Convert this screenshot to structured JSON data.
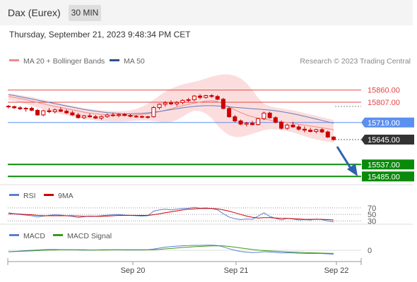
{
  "header": {
    "title": "Dax (Eurex)",
    "timeframe": "30 MIN"
  },
  "datetime": "Thursday, September 21, 2023 9:48:34 PM CET",
  "legend": {
    "ma20": "MA 20 + Bollinger Bands",
    "ma50": "MA 50",
    "credit": "Research © 2023 Trading Central"
  },
  "rsi_legend": {
    "rsi": "RSI",
    "ma": "9MA"
  },
  "macd_legend": {
    "macd": "MACD",
    "signal": "MACD Signal"
  },
  "colors": {
    "candle": "#cc0000",
    "ma20": "#f08a8a",
    "bb_fill": "#fbd7d7",
    "ma50": "#5f7fbf",
    "resistance": "#e64545",
    "pivot": "#5b8ff0",
    "support": "#0a8a0a",
    "current": "#333333",
    "arrow": "#2e62b0"
  },
  "chart_data": [
    {
      "type": "candlestick",
      "ylim": [
        15440,
        15960
      ],
      "x_ticks": [
        "Sep 20",
        "Sep 21",
        "Sep 22"
      ],
      "candles": [
        {
          "o": 15790,
          "h": 15795,
          "l": 15780,
          "c": 15788
        },
        {
          "o": 15788,
          "h": 15792,
          "l": 15778,
          "c": 15783
        },
        {
          "o": 15783,
          "h": 15790,
          "l": 15774,
          "c": 15778
        },
        {
          "o": 15778,
          "h": 15786,
          "l": 15766,
          "c": 15781
        },
        {
          "o": 15781,
          "h": 15788,
          "l": 15768,
          "c": 15772
        },
        {
          "o": 15772,
          "h": 15778,
          "l": 15748,
          "c": 15752
        },
        {
          "o": 15752,
          "h": 15774,
          "l": 15746,
          "c": 15770
        },
        {
          "o": 15770,
          "h": 15782,
          "l": 15760,
          "c": 15766
        },
        {
          "o": 15766,
          "h": 15780,
          "l": 15758,
          "c": 15774
        },
        {
          "o": 15774,
          "h": 15785,
          "l": 15764,
          "c": 15768
        },
        {
          "o": 15768,
          "h": 15776,
          "l": 15756,
          "c": 15761
        },
        {
          "o": 15761,
          "h": 15770,
          "l": 15748,
          "c": 15752
        },
        {
          "o": 15752,
          "h": 15760,
          "l": 15736,
          "c": 15740
        },
        {
          "o": 15740,
          "h": 15752,
          "l": 15734,
          "c": 15748
        },
        {
          "o": 15748,
          "h": 15758,
          "l": 15740,
          "c": 15744
        },
        {
          "o": 15744,
          "h": 15752,
          "l": 15735,
          "c": 15738
        },
        {
          "o": 15738,
          "h": 15750,
          "l": 15730,
          "c": 15745
        },
        {
          "o": 15745,
          "h": 15758,
          "l": 15740,
          "c": 15752
        },
        {
          "o": 15752,
          "h": 15762,
          "l": 15744,
          "c": 15750
        },
        {
          "o": 15750,
          "h": 15760,
          "l": 15742,
          "c": 15754
        },
        {
          "o": 15754,
          "h": 15760,
          "l": 15746,
          "c": 15750
        },
        {
          "o": 15750,
          "h": 15756,
          "l": 15742,
          "c": 15746
        },
        {
          "o": 15746,
          "h": 15752,
          "l": 15740,
          "c": 15745
        },
        {
          "o": 15745,
          "h": 15750,
          "l": 15738,
          "c": 15742
        },
        {
          "o": 15742,
          "h": 15748,
          "l": 15736,
          "c": 15744
        },
        {
          "o": 15744,
          "h": 15790,
          "l": 15740,
          "c": 15784
        },
        {
          "o": 15784,
          "h": 15802,
          "l": 15776,
          "c": 15798
        },
        {
          "o": 15798,
          "h": 15812,
          "l": 15788,
          "c": 15804
        },
        {
          "o": 15804,
          "h": 15815,
          "l": 15794,
          "c": 15800
        },
        {
          "o": 15800,
          "h": 15812,
          "l": 15790,
          "c": 15806
        },
        {
          "o": 15806,
          "h": 15820,
          "l": 15798,
          "c": 15815
        },
        {
          "o": 15815,
          "h": 15826,
          "l": 15806,
          "c": 15818
        },
        {
          "o": 15818,
          "h": 15838,
          "l": 15812,
          "c": 15834
        },
        {
          "o": 15834,
          "h": 15842,
          "l": 15820,
          "c": 15828
        },
        {
          "o": 15828,
          "h": 15840,
          "l": 15822,
          "c": 15836
        },
        {
          "o": 15836,
          "h": 15842,
          "l": 15826,
          "c": 15832
        },
        {
          "o": 15832,
          "h": 15838,
          "l": 15816,
          "c": 15820
        },
        {
          "o": 15820,
          "h": 15826,
          "l": 15776,
          "c": 15780
        },
        {
          "o": 15780,
          "h": 15788,
          "l": 15740,
          "c": 15744
        },
        {
          "o": 15744,
          "h": 15752,
          "l": 15720,
          "c": 15726
        },
        {
          "o": 15726,
          "h": 15732,
          "l": 15708,
          "c": 15712
        },
        {
          "o": 15712,
          "h": 15722,
          "l": 15702,
          "c": 15716
        },
        {
          "o": 15716,
          "h": 15726,
          "l": 15706,
          "c": 15710
        },
        {
          "o": 15710,
          "h": 15740,
          "l": 15706,
          "c": 15736
        },
        {
          "o": 15736,
          "h": 15766,
          "l": 15730,
          "c": 15760
        },
        {
          "o": 15760,
          "h": 15766,
          "l": 15736,
          "c": 15740
        },
        {
          "o": 15740,
          "h": 15746,
          "l": 15716,
          "c": 15720
        },
        {
          "o": 15720,
          "h": 15728,
          "l": 15688,
          "c": 15694
        },
        {
          "o": 15694,
          "h": 15714,
          "l": 15688,
          "c": 15708
        },
        {
          "o": 15708,
          "h": 15722,
          "l": 15696,
          "c": 15700
        },
        {
          "o": 15700,
          "h": 15708,
          "l": 15684,
          "c": 15690
        },
        {
          "o": 15690,
          "h": 15702,
          "l": 15676,
          "c": 15686
        },
        {
          "o": 15686,
          "h": 15696,
          "l": 15676,
          "c": 15680
        },
        {
          "o": 15680,
          "h": 15692,
          "l": 15672,
          "c": 15688
        },
        {
          "o": 15688,
          "h": 15694,
          "l": 15674,
          "c": 15678
        },
        {
          "o": 15678,
          "h": 15684,
          "l": 15652,
          "c": 15656
        },
        {
          "o": 15656,
          "h": 15660,
          "l": 15640,
          "c": 15645
        }
      ],
      "ma20": [
        15832,
        15828,
        15823,
        15818,
        15812,
        15806,
        15800,
        15794,
        15789,
        15784,
        15779,
        15774,
        15769,
        15764,
        15760,
        15757,
        15754,
        15752,
        15750,
        15749,
        15749,
        15750,
        15752,
        15754,
        15757,
        15761,
        15766,
        15772,
        15779,
        15786,
        15792,
        15798,
        15803,
        15808,
        15812,
        15814,
        15810,
        15800,
        15788,
        15774,
        15762,
        15752,
        15744,
        15738,
        15734,
        15730,
        15726,
        15722,
        15719,
        15716,
        15712,
        15708,
        15704,
        15700,
        15696,
        15692,
        15688
      ],
      "bb_upper": [
        15845,
        15842,
        15838,
        15834,
        15830,
        15824,
        15818,
        15812,
        15806,
        15801,
        15796,
        15791,
        15786,
        15782,
        15778,
        15775,
        15772,
        15770,
        15769,
        15768,
        15769,
        15772,
        15778,
        15788,
        15800,
        15818,
        15836,
        15852,
        15866,
        15876,
        15884,
        15890,
        15896,
        15902,
        15910,
        15918,
        15924,
        15928,
        15928,
        15922,
        15910,
        15890,
        15860,
        15826,
        15800,
        15790,
        15784,
        15780,
        15776,
        15772,
        15766,
        15760,
        15754,
        15748,
        15742,
        15736,
        15730
      ],
      "bb_lower": [
        15815,
        15812,
        15806,
        15800,
        15792,
        15784,
        15776,
        15768,
        15762,
        15756,
        15750,
        15745,
        15740,
        15735,
        15731,
        15728,
        15726,
        15724,
        15722,
        15722,
        15723,
        15725,
        15727,
        15728,
        15728,
        15726,
        15722,
        15720,
        15722,
        15730,
        15744,
        15760,
        15770,
        15768,
        15758,
        15738,
        15706,
        15682,
        15664,
        15656,
        15656,
        15662,
        15670,
        15678,
        15686,
        15690,
        15690,
        15686,
        15682,
        15676,
        15668,
        15660,
        15652,
        15646,
        15640,
        15636,
        15632
      ],
      "ma50": [
        15840,
        15836,
        15831,
        15826,
        15821,
        15816,
        15811,
        15806,
        15801,
        15796,
        15791,
        15786,
        15781,
        15776,
        15772,
        15768,
        15765,
        15762,
        15760,
        15758,
        15757,
        15757,
        15758,
        15759,
        15761,
        15764,
        15767,
        15771,
        15775,
        15779,
        15783,
        15786,
        15789,
        15791,
        15792,
        15792,
        15791,
        15789,
        15787,
        15785,
        15783,
        15781,
        15779,
        15777,
        15775,
        15773,
        15770,
        15766,
        15762,
        15757,
        15752,
        15746,
        15740,
        15734,
        15728,
        15722,
        15716
      ],
      "levels": {
        "r2": "15860.00",
        "r1": "15807.00",
        "pivot": "15719.00",
        "current": "15645.00",
        "s1": "15537.00",
        "s2": "15485.00"
      }
    },
    {
      "type": "line",
      "name": "RSI",
      "ylim": [
        20,
        85
      ],
      "y_ticks": [
        "70",
        "50",
        "30"
      ],
      "rsi": [
        55,
        52,
        50,
        48,
        46,
        42,
        45,
        47,
        49,
        48,
        46,
        44,
        40,
        43,
        45,
        44,
        46,
        48,
        49,
        50,
        48,
        47,
        46,
        45,
        46,
        60,
        64,
        66,
        64,
        66,
        68,
        69,
        72,
        69,
        70,
        68,
        64,
        52,
        42,
        37,
        34,
        36,
        35,
        45,
        55,
        44,
        38,
        33,
        38,
        36,
        33,
        34,
        33,
        36,
        34,
        30,
        27
      ],
      "rsi_ma": [
        52,
        52,
        51,
        50,
        49,
        47,
        46,
        46,
        46,
        46,
        46,
        46,
        45,
        44,
        44,
        44,
        44,
        45,
        46,
        47,
        47,
        47,
        47,
        47,
        47,
        49,
        52,
        55,
        58,
        61,
        64,
        66,
        67,
        68,
        68,
        68,
        67,
        64,
        60,
        55,
        50,
        45,
        41,
        39,
        40,
        40,
        39,
        38,
        38,
        37,
        36,
        35,
        35,
        35,
        35,
        34,
        33
      ]
    },
    {
      "type": "line",
      "name": "MACD",
      "y_ticks": [
        "0"
      ],
      "macd": [
        -10,
        -8,
        -5,
        -2,
        0,
        2,
        4,
        5,
        5,
        4,
        3,
        3,
        2,
        1,
        1,
        2,
        3,
        3,
        3,
        3,
        2,
        2,
        2,
        2,
        3,
        8,
        14,
        20,
        24,
        27,
        29,
        30,
        32,
        32,
        33,
        33,
        31,
        22,
        10,
        0,
        -8,
        -12,
        -15,
        -13,
        -9,
        -11,
        -14,
        -17,
        -16,
        -17,
        -19,
        -20,
        -21,
        -20,
        -21,
        -23,
        -25
      ],
      "signal": [
        -9,
        -8,
        -7,
        -5,
        -4,
        -2,
        0,
        1,
        2,
        3,
        3,
        3,
        3,
        3,
        2,
        2,
        2,
        2,
        3,
        3,
        3,
        3,
        3,
        3,
        3,
        4,
        6,
        9,
        12,
        15,
        18,
        20,
        23,
        25,
        27,
        28,
        29,
        28,
        25,
        20,
        15,
        10,
        5,
        1,
        -2,
        -4,
        -6,
        -8,
        -10,
        -12,
        -13,
        -15,
        -16,
        -17,
        -18,
        -19,
        -20
      ]
    }
  ]
}
